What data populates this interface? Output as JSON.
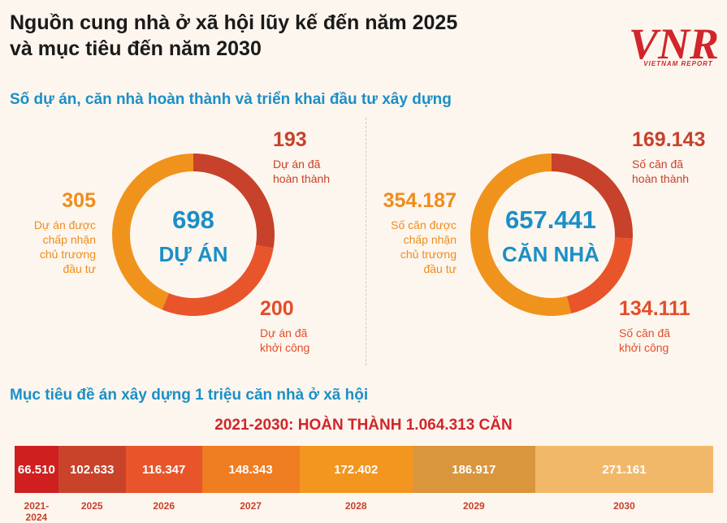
{
  "title": {
    "line1": "Nguồn cung nhà ở xã hội lũy kế đến năm 2025",
    "line2": "và mục tiêu đến năm 2030"
  },
  "brand": {
    "logo_text": "VNR",
    "subtitle": "VIETNAM REPORT",
    "color": "#d0262b"
  },
  "section1_title": "Số dự án, căn nhà hoàn thành và triển khai đầu tư xây dựng",
  "section2_title": "Mục tiêu đề án xây dựng 1 triệu căn nhà ở xã hội",
  "colors": {
    "completed": "#c7412b",
    "started": "#e8552b",
    "approved": "#f0931c",
    "accent_blue": "#1b8fc7"
  },
  "chart_data": [
    {
      "type": "pie",
      "title": "Dự án",
      "center_value": "698",
      "center_label": "DỰ ÁN",
      "slices": [
        {
          "name": "completed",
          "value": 193,
          "value_label": "193",
          "label_lines": [
            "Dự án đã",
            "hoàn thành"
          ]
        },
        {
          "name": "started",
          "value": 200,
          "value_label": "200",
          "label_lines": [
            "Dự án đã",
            "khởi công"
          ]
        },
        {
          "name": "approved",
          "value": 305,
          "value_label": "305",
          "label_lines": [
            "Dự án được",
            "chấp nhận",
            "chủ trương",
            "đầu tư"
          ]
        }
      ]
    },
    {
      "type": "pie",
      "title": "Căn nhà",
      "center_value": "657.441",
      "center_label": "CĂN NHÀ",
      "slices": [
        {
          "name": "completed",
          "value": 169143,
          "value_label": "169.143",
          "label_lines": [
            "Số căn đã",
            "hoàn thành"
          ]
        },
        {
          "name": "started",
          "value": 134111,
          "value_label": "134.111",
          "label_lines": [
            "Số căn đã",
            "khởi công"
          ]
        },
        {
          "name": "approved",
          "value": 354187,
          "value_label": "354.187",
          "label_lines": [
            "Số căn được",
            "chấp nhận",
            "chủ trương",
            "đầu tư"
          ]
        }
      ]
    },
    {
      "type": "bar",
      "orientation": "horizontal-stacked",
      "title": "2021-2030: HOÀN THÀNH 1.064.313 CĂN",
      "categories": [
        "2021-2024",
        "2025",
        "2026",
        "2027",
        "2028",
        "2029",
        "2030"
      ],
      "values": [
        66510,
        102633,
        116347,
        148343,
        172402,
        186917,
        271161
      ],
      "value_labels": [
        "66.510",
        "102.633",
        "116.347",
        "148.343",
        "172.402",
        "186.917",
        "271.161"
      ],
      "colors": [
        "#cf1f1f",
        "#c9432b",
        "#e8552b",
        "#ef7d22",
        "#f2961f",
        "#d9963c",
        "#f2b86a"
      ]
    }
  ]
}
